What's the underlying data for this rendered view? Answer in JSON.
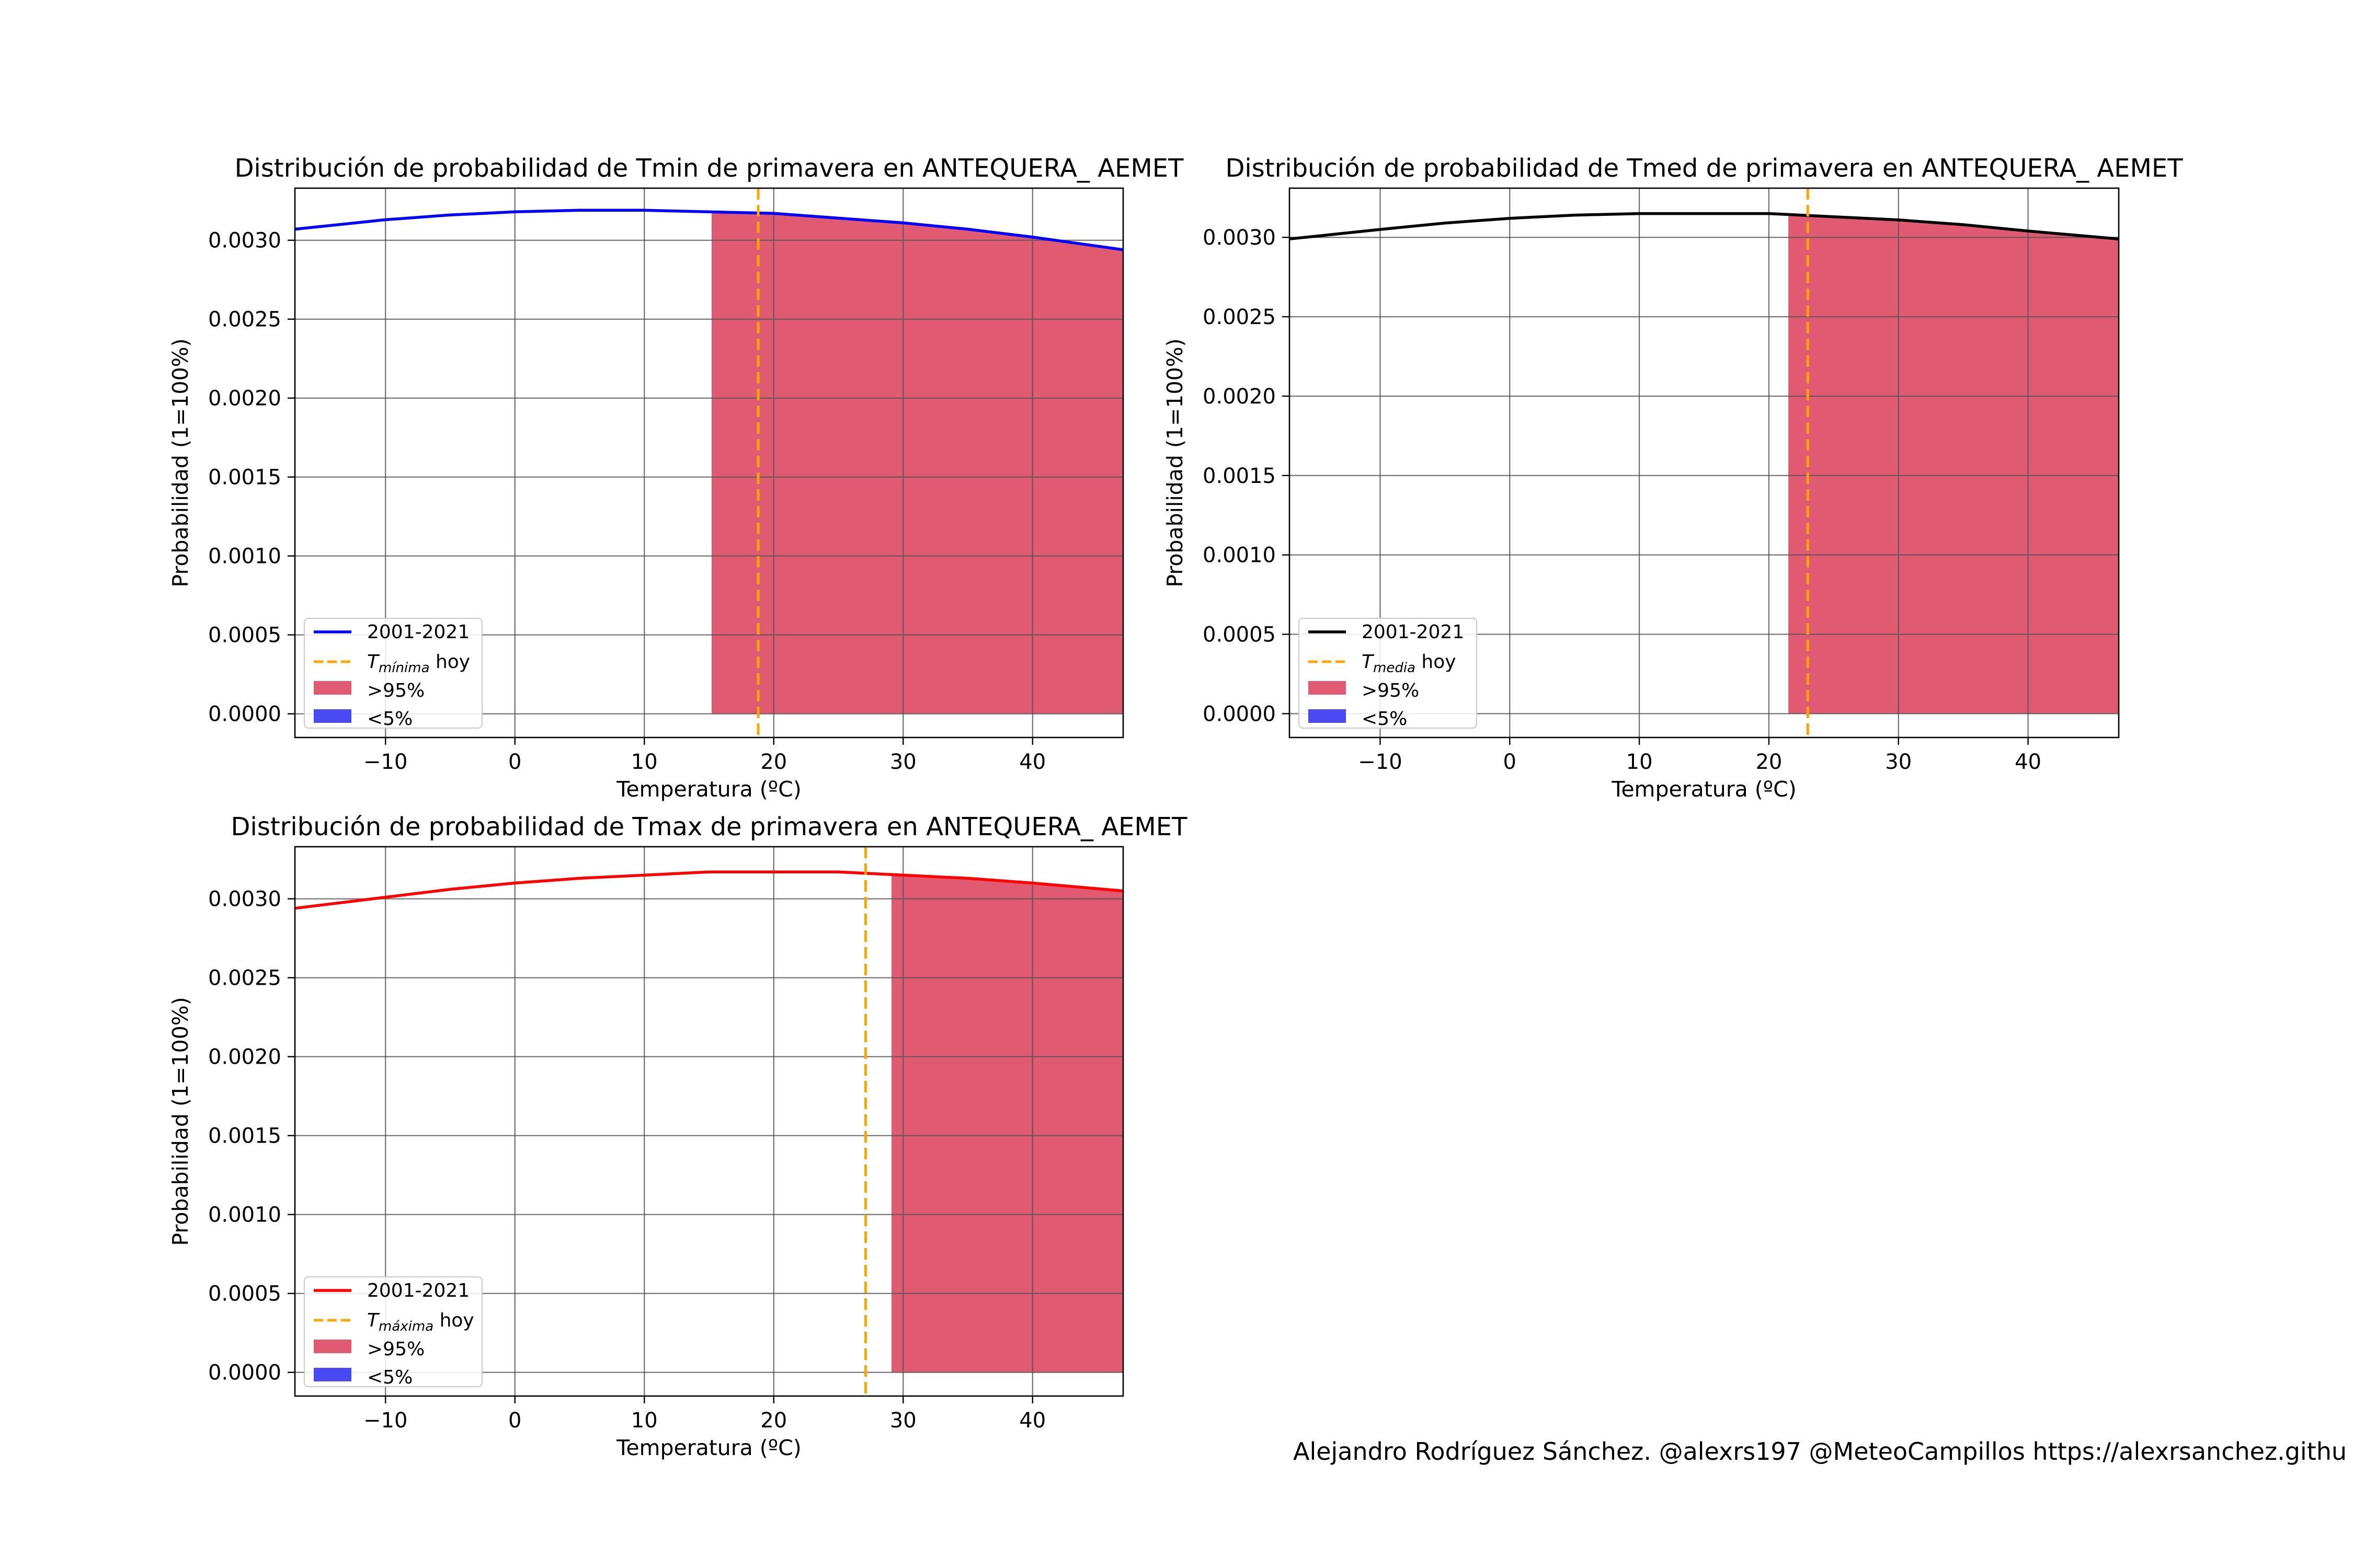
{
  "credit": "Alejandro Rodríguez Sánchez. @alexrs197 @MeteoCampillos   https://alexrsanchez.githu",
  "chart_data": [
    {
      "type": "line",
      "title": "Distribución de probabilidad de Tmin de primavera en ANTEQUERA_ AEMET",
      "xlabel": "Temperatura (ºC)",
      "ylabel": "Probabilidad (1=100%)",
      "xlim": [
        -17,
        47
      ],
      "ylim": [
        -0.00015,
        0.00333
      ],
      "xticks": [
        -10,
        0,
        10,
        20,
        30,
        40
      ],
      "xtick_labels": [
        "−10",
        "0",
        "10",
        "20",
        "30",
        "40"
      ],
      "yticks": [
        0,
        0.0005,
        0.001,
        0.0015,
        0.002,
        0.0025,
        0.003
      ],
      "ytick_labels": [
        "0.0000",
        "0.0005",
        "0.0010",
        "0.0015",
        "0.0020",
        "0.0025",
        "0.0030"
      ],
      "grid": true,
      "legend_position": "lower-left",
      "curve_color": "#0000ff",
      "series": [
        {
          "name": "2001-2021",
          "x": [
            -17,
            -10,
            -5,
            0,
            5,
            10,
            15,
            20,
            25,
            30,
            35,
            40,
            47
          ],
          "y": [
            0.00307,
            0.00313,
            0.00316,
            0.00318,
            0.00319,
            0.00319,
            0.00318,
            0.00317,
            0.00314,
            0.00311,
            0.00307,
            0.00302,
            0.00294
          ]
        }
      ],
      "today_value": 18.8,
      "today_label_var": "mínima",
      "shaded_above_95_from": 15.2,
      "legend": [
        "2001-2021",
        "T",
        "mínima",
        " hoy",
        ">95%",
        "<5%"
      ]
    },
    {
      "type": "line",
      "title": "Distribución de probabilidad de Tmed de primavera en ANTEQUERA_ AEMET",
      "xlabel": "Temperatura (ºC)",
      "ylabel": "Probabilidad (1=100%)",
      "xlim": [
        -17,
        47
      ],
      "ylim": [
        -0.00015,
        0.00331
      ],
      "xticks": [
        -10,
        0,
        10,
        20,
        30,
        40
      ],
      "xtick_labels": [
        "−10",
        "0",
        "10",
        "20",
        "30",
        "40"
      ],
      "yticks": [
        0,
        0.0005,
        0.001,
        0.0015,
        0.002,
        0.0025,
        0.003
      ],
      "ytick_labels": [
        "0.0000",
        "0.0005",
        "0.0010",
        "0.0015",
        "0.0020",
        "0.0025",
        "0.0030"
      ],
      "grid": true,
      "legend_position": "lower-left",
      "curve_color": "#000000",
      "series": [
        {
          "name": "2001-2021",
          "x": [
            -17,
            -10,
            -5,
            0,
            5,
            10,
            15,
            20,
            25,
            30,
            35,
            40,
            47
          ],
          "y": [
            0.00299,
            0.00305,
            0.00309,
            0.00312,
            0.00314,
            0.00315,
            0.00315,
            0.00315,
            0.00313,
            0.00311,
            0.00308,
            0.00304,
            0.00299
          ]
        }
      ],
      "today_value": 23,
      "today_label_var": "media",
      "shaded_above_95_from": 21.5,
      "legend": [
        "2001-2021",
        "T",
        "media",
        " hoy",
        ">95%",
        "<5%"
      ]
    },
    {
      "type": "line",
      "title": "Distribución de probabilidad de Tmax de primavera en ANTEQUERA_ AEMET",
      "xlabel": "Temperatura (ºC)",
      "ylabel": "Probabilidad (1=100%)",
      "xlim": [
        -17,
        47
      ],
      "ylim": [
        -0.00015,
        0.00333
      ],
      "xticks": [
        -10,
        0,
        10,
        20,
        30,
        40
      ],
      "xtick_labels": [
        "−10",
        "0",
        "10",
        "20",
        "30",
        "40"
      ],
      "yticks": [
        0,
        0.0005,
        0.001,
        0.0015,
        0.002,
        0.0025,
        0.003
      ],
      "ytick_labels": [
        "0.0000",
        "0.0005",
        "0.0010",
        "0.0015",
        "0.0020",
        "0.0025",
        "0.0030"
      ],
      "grid": true,
      "legend_position": "lower-left",
      "curve_color": "#ff0000",
      "series": [
        {
          "name": "2001-2021",
          "x": [
            -17,
            -10,
            -5,
            0,
            5,
            10,
            15,
            20,
            25,
            30,
            35,
            40,
            47
          ],
          "y": [
            0.00294,
            0.00301,
            0.00306,
            0.0031,
            0.00313,
            0.00315,
            0.00317,
            0.00317,
            0.00317,
            0.00315,
            0.00313,
            0.0031,
            0.00305
          ]
        }
      ],
      "today_value": 27.1,
      "today_label_var": "máxima",
      "shaded_above_95_from": 29.1,
      "legend": [
        "2001-2021",
        "T",
        "máxima",
        " hoy",
        ">95%",
        "<5%"
      ]
    }
  ],
  "colors": {
    "shade_above_95": "#e05a72",
    "shade_below_5": "#4a4af5",
    "today_line": "#ffa500",
    "grid": "#555555"
  }
}
